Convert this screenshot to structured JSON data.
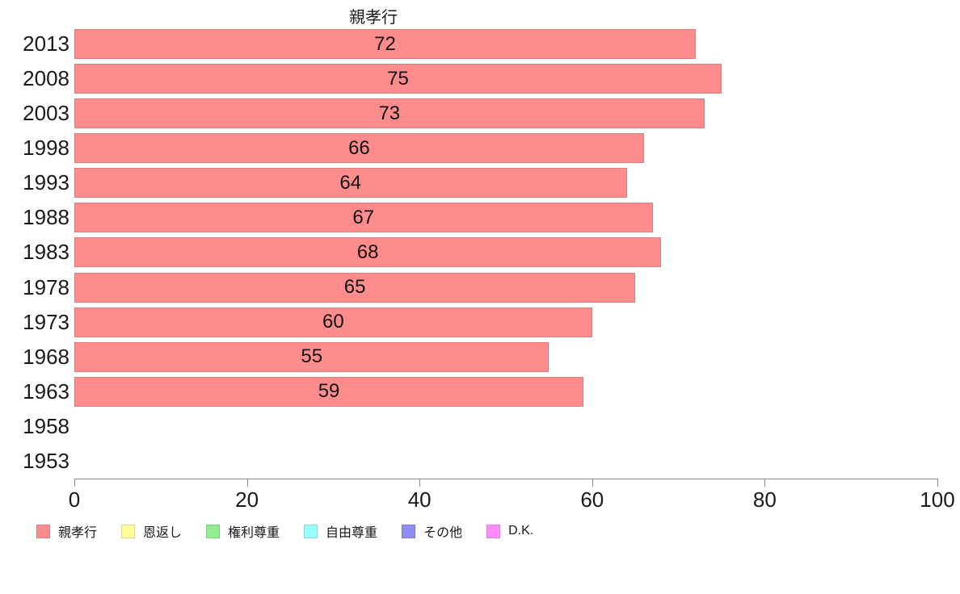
{
  "chart_data": {
    "type": "bar",
    "orientation": "horizontal",
    "title": "親孝行",
    "categories": [
      "2013",
      "2008",
      "2003",
      "1998",
      "1993",
      "1988",
      "1983",
      "1978",
      "1973",
      "1968",
      "1963",
      "1958",
      "1953"
    ],
    "values": [
      72,
      75,
      73,
      66,
      64,
      67,
      68,
      65,
      60,
      55,
      59,
      null,
      null
    ],
    "xlabel": "",
    "ylabel": "",
    "xlim": [
      0,
      100
    ],
    "x_ticks": [
      0,
      20,
      40,
      60,
      80,
      100
    ],
    "grid": false,
    "legend_position": "bottom",
    "series_color": {
      "fill": "#ff8c8c",
      "border": "#d77e7e"
    },
    "axis_color": "#8a8a8a",
    "text_color": "#1a1a1a",
    "legend": [
      {
        "label": "親孝行",
        "fill": "#ff8c8c",
        "border": "#d77e7e"
      },
      {
        "label": "恩返し",
        "fill": "#ffff9b",
        "border": "#d9d983"
      },
      {
        "label": "権利尊重",
        "fill": "#90ee90",
        "border": "#79ca79"
      },
      {
        "label": "自由尊重",
        "fill": "#9bffff",
        "border": "#83d9d9"
      },
      {
        "label": "その他",
        "fill": "#8d8df2",
        "border": "#7878cf"
      },
      {
        "label": "D.K.",
        "fill": "#ff8dff",
        "border": "#d97ed9"
      }
    ]
  }
}
